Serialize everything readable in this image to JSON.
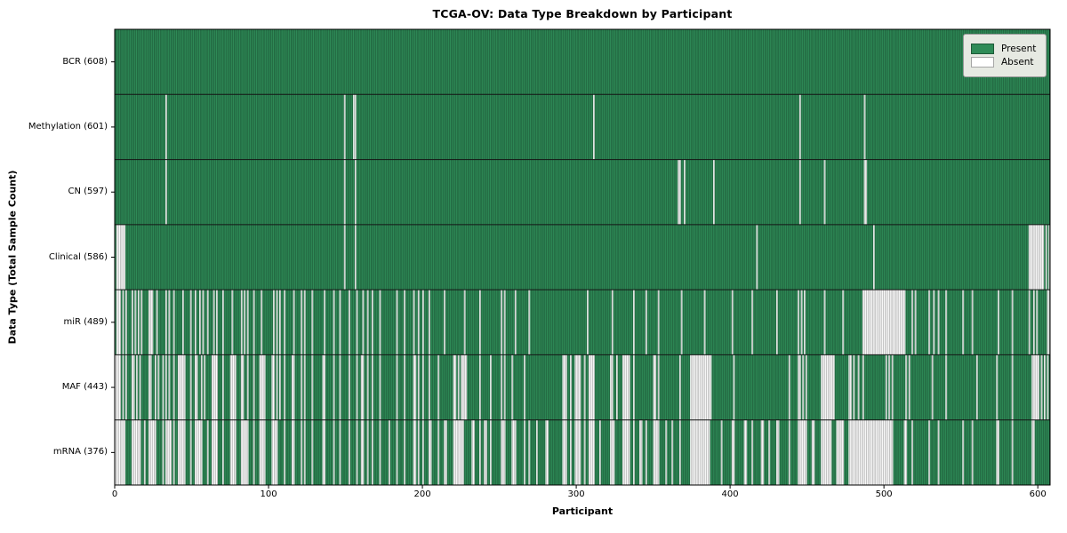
{
  "chart_data": {
    "type": "heatmap",
    "title": "TCGA-OV: Data Type Breakdown by Participant",
    "xlabel": "Participant",
    "ylabel": "Data Type (Total Sample Count)",
    "legend": {
      "present_label": "Present",
      "absent_label": "Absent",
      "position": "upper right"
    },
    "x_ticks": [
      0,
      100,
      200,
      300,
      400,
      500,
      600
    ],
    "x_range": [
      0,
      608
    ],
    "total_participants": 608,
    "grid": false,
    "colors": {
      "present": "#2E8B57",
      "absent": "#FFFFFF",
      "bar_edge": "rgba(0,0,0,0.42)",
      "row_separator": "#141414",
      "plot_border": "#000000",
      "legend_bg": "#e6e9e2",
      "legend_border": "#9a9a9a",
      "text": "#000000"
    },
    "note": "Rows top-to-bottom. 'absent' holds participant indices (0-607); [a,b] entries are inclusive ranges. Positions estimated from figure; counts match row totals (608 - count).",
    "rows": [
      {
        "name": "BCR",
        "count": 608,
        "label": "BCR (608)",
        "absent": []
      },
      {
        "name": "Methylation",
        "count": 601,
        "label": "Methylation (601)",
        "absent": [
          33,
          149,
          155,
          156,
          311,
          445,
          487
        ]
      },
      {
        "name": "CN",
        "count": 597,
        "label": "CN (597)",
        "absent": [
          33,
          149,
          156,
          366,
          367,
          370,
          389,
          445,
          461,
          487,
          488
        ]
      },
      {
        "name": "Clinical",
        "count": 586,
        "label": "Clinical (586)",
        "absent": [
          [
            1,
            6
          ],
          149,
          156,
          417,
          493,
          [
            594,
            603
          ],
          605,
          607
        ]
      },
      {
        "name": "miR",
        "count": 489,
        "label": "miR (489)",
        "absent": [
          [
            1,
            3
          ],
          5,
          7,
          11,
          13,
          15,
          17,
          [
            22,
            24
          ],
          27,
          33,
          35,
          38,
          44,
          49,
          52,
          55,
          57,
          60,
          64,
          66,
          70,
          76,
          82,
          84,
          86,
          90,
          95,
          103,
          105,
          107,
          110,
          116,
          121,
          123,
          128,
          136,
          142,
          146,
          152,
          157,
          161,
          164,
          167,
          172,
          183,
          188,
          194,
          197,
          200,
          204,
          214,
          227,
          237,
          251,
          253,
          260,
          269,
          307,
          323,
          337,
          345,
          353,
          368,
          383,
          401,
          414,
          430,
          444,
          446,
          448,
          461,
          473,
          [
            486,
            513
          ],
          518,
          520,
          529,
          532,
          535,
          540,
          551,
          557,
          574,
          583,
          594,
          597,
          599,
          606,
          607
        ]
      },
      {
        "name": "MAF",
        "count": 443,
        "label": "MAF (443)",
        "absent": [
          [
            0,
            3
          ],
          5,
          7,
          [
            11,
            12
          ],
          14,
          16,
          [
            22,
            23
          ],
          26,
          28,
          31,
          33,
          35,
          38,
          [
            41,
            45
          ],
          49,
          [
            52,
            53
          ],
          56,
          58,
          [
            63,
            66
          ],
          70,
          [
            75,
            78
          ],
          [
            82,
            83
          ],
          86,
          90,
          [
            94,
            97
          ],
          [
            102,
            103
          ],
          105,
          107,
          110,
          [
            115,
            116
          ],
          121,
          123,
          128,
          [
            135,
            136
          ],
          142,
          146,
          152,
          157,
          [
            160,
            161
          ],
          164,
          167,
          172,
          183,
          188,
          [
            194,
            195
          ],
          197,
          200,
          204,
          210,
          [
            220,
            221
          ],
          223,
          [
            225,
            228
          ],
          237,
          244,
          251,
          253,
          258,
          266,
          [
            291,
            293
          ],
          296,
          [
            299,
            302
          ],
          305,
          [
            308,
            311
          ],
          [
            322,
            323
          ],
          326,
          [
            330,
            334
          ],
          337,
          [
            350,
            351
          ],
          353,
          367,
          [
            374,
            387
          ],
          402,
          438,
          [
            444,
            445
          ],
          447,
          449,
          [
            459,
            467
          ],
          [
            477,
            478
          ],
          480,
          483,
          486,
          501,
          503,
          505,
          514,
          516,
          531,
          540,
          560,
          573,
          583,
          [
            596,
            600
          ],
          602,
          604,
          606
        ]
      },
      {
        "name": "mRNA",
        "count": 376,
        "label": "mRNA (376)",
        "absent": [
          [
            0,
            6
          ],
          [
            11,
            16
          ],
          19,
          [
            22,
            26
          ],
          31,
          [
            33,
            36
          ],
          38,
          [
            41,
            45
          ],
          49,
          [
            52,
            56
          ],
          60,
          [
            63,
            66
          ],
          70,
          [
            75,
            78
          ],
          [
            82,
            86
          ],
          90,
          [
            94,
            97
          ],
          [
            102,
            105
          ],
          110,
          [
            115,
            116
          ],
          121,
          123,
          128,
          [
            135,
            136
          ],
          142,
          146,
          152,
          157,
          [
            160,
            161
          ],
          164,
          167,
          172,
          178,
          183,
          188,
          [
            194,
            195
          ],
          197,
          200,
          [
            204,
            205
          ],
          210,
          [
            214,
            215
          ],
          [
            220,
            226
          ],
          [
            232,
            233
          ],
          237,
          [
            240,
            241
          ],
          244,
          [
            251,
            253
          ],
          [
            258,
            260
          ],
          266,
          269,
          274,
          [
            280,
            281
          ],
          [
            291,
            293
          ],
          296,
          [
            299,
            302
          ],
          305,
          [
            308,
            311
          ],
          315,
          [
            322,
            324
          ],
          [
            330,
            334
          ],
          337,
          [
            341,
            342
          ],
          345,
          [
            350,
            353
          ],
          358,
          362,
          367,
          [
            374,
            386
          ],
          394,
          [
            401,
            402
          ],
          [
            409,
            410
          ],
          414,
          [
            420,
            421
          ],
          425,
          [
            430,
            431
          ],
          438,
          [
            444,
            449
          ],
          [
            453,
            454
          ],
          [
            459,
            465
          ],
          [
            469,
            473
          ],
          [
            477,
            505
          ],
          [
            513,
            514
          ],
          518,
          529,
          535,
          551,
          557,
          [
            573,
            574
          ],
          583,
          [
            596,
            597
          ]
        ]
      }
    ]
  }
}
